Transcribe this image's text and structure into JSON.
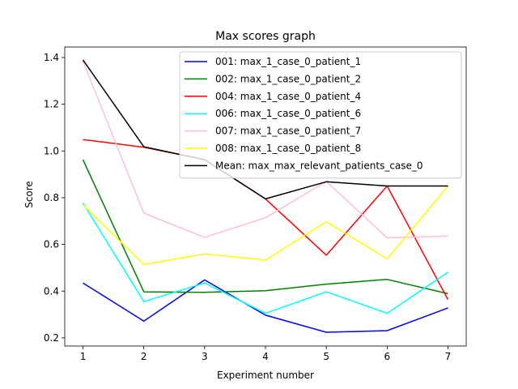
{
  "chart_data": {
    "type": "line",
    "title": "Max scores graph",
    "xlabel": "Experiment number",
    "ylabel": "Score",
    "x": [
      1,
      2,
      3,
      4,
      5,
      6,
      7
    ],
    "xlim": [
      0.7,
      7.3
    ],
    "ylim": [
      0.165,
      1.445
    ],
    "yticks": [
      0.2,
      0.4,
      0.6,
      0.8,
      1.0,
      1.2,
      1.4
    ],
    "ytick_labels": [
      "0.2",
      "0.4",
      "0.6",
      "0.8",
      "1.0",
      "1.2",
      "1.4"
    ],
    "xtick_labels": [
      "1",
      "2",
      "3",
      "4",
      "5",
      "6",
      "7"
    ],
    "grid": false,
    "legend_position": "top-right",
    "series": [
      {
        "name": "001: max_1_case_0_patient_1",
        "color": "#0000ff",
        "values": [
          0.435,
          0.272,
          0.448,
          0.297,
          0.224,
          0.231,
          0.328
        ]
      },
      {
        "name": "002: max_1_case_0_patient_2",
        "color": "#008000",
        "values": [
          0.963,
          0.397,
          0.395,
          0.402,
          0.43,
          0.45,
          0.389
        ]
      },
      {
        "name": "004: max_1_case_0_patient_4",
        "color": "#ff0000",
        "values": [
          1.049,
          1.016,
          0.963,
          0.795,
          0.554,
          0.85,
          0.364
        ]
      },
      {
        "name": "006: max_1_case_0_patient_6",
        "color": "#00ffff",
        "values": [
          0.777,
          0.355,
          0.435,
          0.305,
          0.397,
          0.305,
          0.481
        ]
      },
      {
        "name": "007: max_1_case_0_patient_7",
        "color": "#ffc0cb",
        "values": [
          1.384,
          0.734,
          0.63,
          0.714,
          0.87,
          0.628,
          0.636
        ]
      },
      {
        "name": "008: max_1_case_0_patient_8",
        "color": "#ffff00",
        "values": [
          0.77,
          0.514,
          0.559,
          0.533,
          0.697,
          0.538,
          0.85
        ]
      },
      {
        "name": "Mean: max_max_relevant_patients_case_0",
        "color": "#000000",
        "values": [
          1.39,
          1.018,
          0.963,
          0.795,
          0.868,
          0.85,
          0.85
        ]
      }
    ]
  }
}
